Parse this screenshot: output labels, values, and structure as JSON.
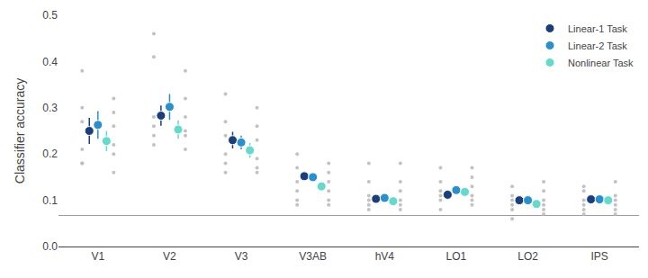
{
  "chart_data": {
    "type": "scatter",
    "categories": [
      "V1",
      "V2",
      "V3",
      "V3AB",
      "hV4",
      "LO1",
      "LO2",
      "IPS"
    ],
    "series": [
      {
        "name": "Linear-1 Task",
        "color": "#1b3f7a",
        "values": [
          0.25,
          0.283,
          0.23,
          0.152,
          0.103,
          0.112,
          0.1,
          0.102
        ],
        "errors": [
          0.028,
          0.022,
          0.018,
          0.008,
          0.007,
          0.01,
          0.007,
          0.008
        ]
      },
      {
        "name": "Linear-2 Task",
        "color": "#2b8fcc",
        "values": [
          0.263,
          0.302,
          0.225,
          0.15,
          0.105,
          0.122,
          0.1,
          0.102
        ],
        "errors": [
          0.03,
          0.028,
          0.015,
          0.008,
          0.007,
          0.008,
          0.007,
          0.007
        ]
      },
      {
        "name": "Nonlinear Task",
        "color": "#66d9cc",
        "values": [
          0.228,
          0.253,
          0.208,
          0.13,
          0.098,
          0.118,
          0.092,
          0.1
        ],
        "errors": [
          0.022,
          0.02,
          0.016,
          0.01,
          0.007,
          0.009,
          0.007,
          0.007
        ]
      }
    ],
    "individual_points": {
      "color": "#bbbbbb",
      "columns": [
        [
          [
            0.38,
            0.3,
            0.27,
            0.21,
            0.18,
            0.18
          ],
          [
            0.46,
            0.41,
            0.28,
            0.26,
            0.24,
            0.22
          ],
          [
            0.33,
            0.27,
            0.24,
            0.2,
            0.18,
            0.16
          ],
          [
            0.2,
            0.17,
            0.14,
            0.12,
            0.1,
            0.09
          ],
          [
            0.18,
            0.14,
            0.11,
            0.1,
            0.09,
            0.08
          ],
          [
            0.17,
            0.14,
            0.12,
            0.11,
            0.1,
            0.08
          ],
          [
            0.13,
            0.11,
            0.1,
            0.09,
            0.08,
            0.06
          ],
          [
            0.13,
            0.12,
            0.1,
            0.09,
            0.08,
            0.07
          ]
        ],
        [
          [
            0.32,
            0.29,
            0.26,
            0.22,
            0.2,
            0.16
          ],
          [
            0.38,
            0.32,
            0.28,
            0.25,
            0.24,
            0.21
          ],
          [
            0.3,
            0.26,
            0.23,
            0.19,
            0.17,
            0.16
          ],
          [
            0.18,
            0.16,
            0.14,
            0.12,
            0.1,
            0.09
          ],
          [
            0.18,
            0.14,
            0.12,
            0.1,
            0.09,
            0.08
          ],
          [
            0.17,
            0.15,
            0.13,
            0.11,
            0.1,
            0.09
          ],
          [
            0.14,
            0.12,
            0.1,
            0.09,
            0.08,
            0.07
          ],
          [
            0.14,
            0.11,
            0.1,
            0.09,
            0.08,
            0.07
          ]
        ]
      ]
    },
    "reference_line": {
      "value": 0.067,
      "color": "#999999"
    },
    "ylabel": "Classifier accuracy",
    "ylim": [
      0.0,
      0.5
    ],
    "yticks": [
      {
        "value": 0.0,
        "label": "0.0"
      },
      0.1,
      0.2,
      0.3,
      0.4,
      0.5
    ],
    "grid": false,
    "legend": "upper right"
  }
}
